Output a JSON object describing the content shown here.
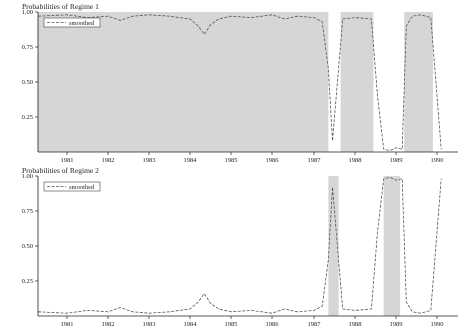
{
  "chart_data": [
    {
      "type": "line",
      "title": "Probabilities of Regime 1",
      "xlabel": "",
      "ylabel": "",
      "xlim": [
        1980.6,
        1998.6
      ],
      "ylim": [
        0,
        1
      ],
      "yticks": [
        0.25,
        0.5,
        0.75,
        1.0
      ],
      "ytick_labels": [
        "0.25",
        "0.50",
        "0.75",
        "1.00"
      ],
      "xticks": [
        1981,
        1982,
        1983,
        1984,
        1985,
        1986,
        1987,
        1988,
        1989,
        1990
      ],
      "xtick_labels": [
        "1981",
        "1982",
        "1983",
        "1984",
        "1985",
        "1986",
        "1987",
        "1988",
        "1989",
        "1990"
      ],
      "legend": {
        "position": "top-left",
        "entries": [
          "smoothed"
        ]
      },
      "grid": false,
      "shaded_regions": [
        [
          1980.6,
          1987.35
        ],
        [
          1987.65,
          1988.45
        ],
        [
          1989.2,
          1989.9
        ]
      ],
      "series": [
        {
          "name": "smoothed",
          "x": [
            1980.6,
            1981.0,
            1981.5,
            1982.0,
            1982.3,
            1982.6,
            1983.0,
            1983.5,
            1984.0,
            1984.2,
            1984.35,
            1984.5,
            1984.7,
            1985.0,
            1985.5,
            1986.0,
            1986.3,
            1986.6,
            1987.0,
            1987.2,
            1987.35,
            1987.45,
            1987.6,
            1987.7,
            1988.0,
            1988.4,
            1988.55,
            1988.7,
            1988.85,
            1989.0,
            1989.15,
            1989.25,
            1989.4,
            1989.6,
            1989.85,
            1990.0,
            1990.1
          ],
          "y": [
            0.97,
            0.98,
            0.96,
            0.97,
            0.94,
            0.97,
            0.98,
            0.97,
            0.95,
            0.9,
            0.84,
            0.91,
            0.95,
            0.97,
            0.96,
            0.98,
            0.95,
            0.97,
            0.96,
            0.93,
            0.6,
            0.08,
            0.6,
            0.95,
            0.96,
            0.95,
            0.4,
            0.02,
            0.01,
            0.03,
            0.02,
            0.9,
            0.97,
            0.98,
            0.96,
            0.4,
            0.02
          ]
        }
      ]
    },
    {
      "type": "line",
      "title": "Probabilities of Regime 2",
      "xlabel": "",
      "ylabel": "",
      "xlim": [
        1980.6,
        1998.6
      ],
      "ylim": [
        0,
        1
      ],
      "yticks": [
        0.25,
        0.5,
        0.75,
        1.0
      ],
      "ytick_labels": [
        "0.25",
        "0.50",
        "0.75",
        "1.00"
      ],
      "xticks": [
        1981,
        1982,
        1983,
        1984,
        1985,
        1986,
        1987,
        1988,
        1989,
        1990
      ],
      "xtick_labels": [
        "1981",
        "1982",
        "1983",
        "1984",
        "1985",
        "1986",
        "1987",
        "1988",
        "1989",
        "1990"
      ],
      "legend": {
        "position": "top-left",
        "entries": [
          "smoothed"
        ]
      },
      "grid": false,
      "shaded_regions": [
        [
          1987.35,
          1987.6
        ],
        [
          1988.7,
          1989.1
        ]
      ],
      "series": [
        {
          "name": "smoothed",
          "x": [
            1980.6,
            1981.0,
            1981.5,
            1982.0,
            1982.3,
            1982.6,
            1983.0,
            1983.5,
            1984.0,
            1984.2,
            1984.35,
            1984.5,
            1984.7,
            1985.0,
            1985.5,
            1986.0,
            1986.3,
            1986.6,
            1987.0,
            1987.2,
            1987.35,
            1987.45,
            1987.6,
            1987.7,
            1988.0,
            1988.4,
            1988.55,
            1988.7,
            1988.85,
            1989.0,
            1989.15,
            1989.25,
            1989.4,
            1989.6,
            1989.85,
            1990.0,
            1990.1
          ],
          "y": [
            0.03,
            0.02,
            0.04,
            0.03,
            0.06,
            0.03,
            0.02,
            0.03,
            0.05,
            0.1,
            0.16,
            0.09,
            0.05,
            0.03,
            0.04,
            0.02,
            0.05,
            0.03,
            0.04,
            0.07,
            0.4,
            0.92,
            0.4,
            0.05,
            0.04,
            0.05,
            0.6,
            0.98,
            0.99,
            0.97,
            0.98,
            0.1,
            0.03,
            0.02,
            0.04,
            0.6,
            0.98
          ]
        }
      ]
    }
  ]
}
